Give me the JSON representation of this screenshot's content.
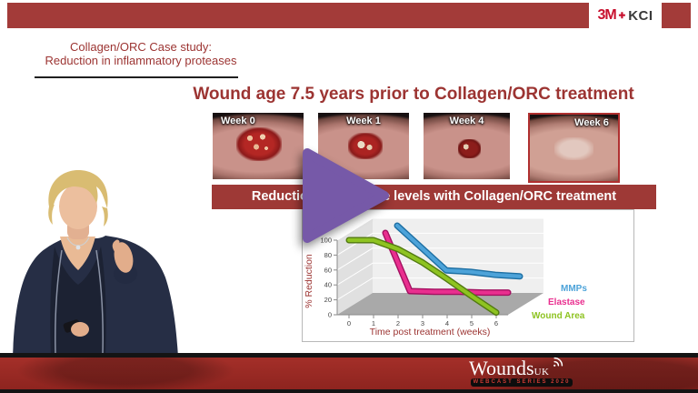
{
  "brand": {
    "part1": "3M",
    "plus": "✚",
    "part2": "KCI"
  },
  "slide": {
    "subtitle_line1": "Collagen/ORC Case study:",
    "subtitle_line2": "Reduction in inflammatory proteases",
    "title": "Wound age 7.5 years prior to Collagen/ORC treatment",
    "banner": "Reduction in protease levels with Collagen/ORC treatment",
    "weeks": [
      {
        "label": "Week 0"
      },
      {
        "label": "Week 1"
      },
      {
        "label": "Week 4"
      },
      {
        "label": "Week 6"
      }
    ]
  },
  "chart_data": {
    "type": "line",
    "style": "3d-ribbon",
    "xlabel": "Time post treatment (weeks)",
    "ylabel": "% Reduction",
    "xticks": [
      0,
      1,
      2,
      3,
      4,
      5,
      6
    ],
    "yticks": [
      0,
      20,
      40,
      60,
      80,
      100
    ],
    "ylim": [
      0,
      100
    ],
    "legend_position": "right",
    "series": [
      {
        "name": "MMPs",
        "color": "#4da3d9",
        "dark": "#1d6fa3",
        "x": [
          1,
          2,
          3,
          4,
          5,
          6
        ],
        "values": [
          100,
          70,
          40,
          38,
          34,
          32
        ]
      },
      {
        "name": "Elastase",
        "color": "#e92f8f",
        "dark": "#a31060",
        "x": [
          1,
          2,
          3,
          4,
          5,
          6
        ],
        "values": [
          100,
          22,
          21,
          21,
          20,
          20
        ]
      },
      {
        "name": "Wound Area",
        "color": "#8ec321",
        "dark": "#527a10",
        "x": [
          0,
          1,
          2,
          3,
          4,
          5,
          6
        ],
        "values": [
          100,
          100,
          88,
          70,
          48,
          25,
          3
        ]
      }
    ]
  },
  "player": {
    "icon": "play-triangle",
    "color": "#7659a8"
  },
  "footer": {
    "logo": "Wounds",
    "logo_sub": "UK",
    "series_label": "WEBCAST SERIES 2020"
  },
  "colors": {
    "bar_red": "#a33b39",
    "banner_red": "#9e3936",
    "heading_red": "#9c3432",
    "bottom_red": "#99241f",
    "purple": "#7659a8"
  }
}
